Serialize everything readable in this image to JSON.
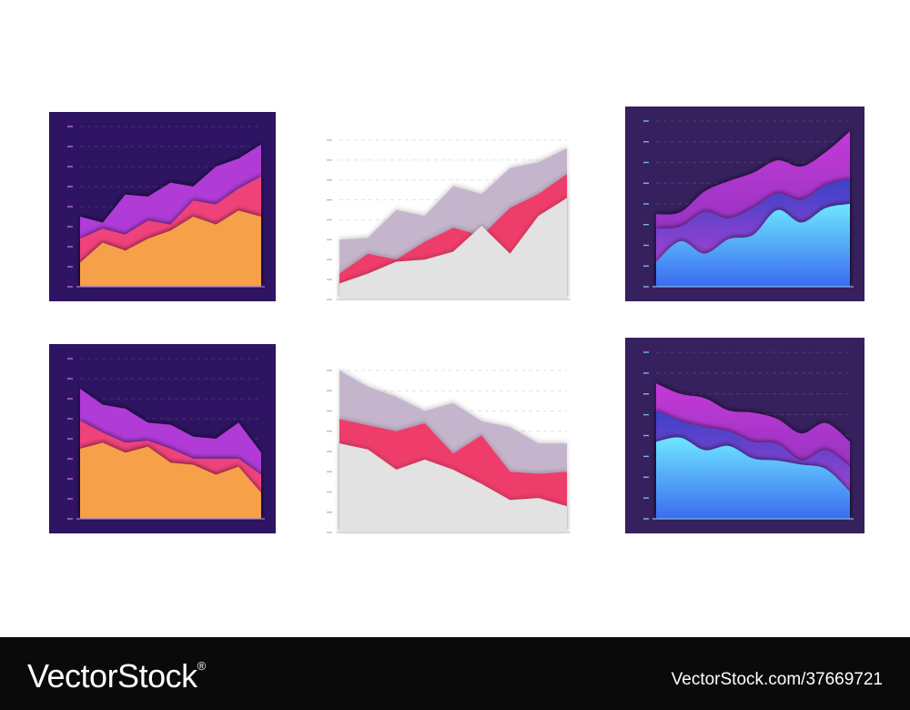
{
  "theme": {
    "dark_bg": "#2e1463",
    "dark_bg_alt": "#36205e",
    "light_bg": "#ffffff",
    "tick_dark": "#c36ad6",
    "tick_blue": "#7bb8e6",
    "tick_light": "#bdbdbd"
  },
  "chart_data": [
    {
      "type": "area",
      "style": "dark",
      "x": [
        0,
        1,
        2,
        3,
        4,
        5,
        6,
        7,
        8
      ],
      "ylim": [
        0,
        8
      ],
      "grid": true,
      "series": [
        {
          "color": "#f6a048",
          "values": [
            1.2,
            2.2,
            1.8,
            2.4,
            2.8,
            3.5,
            3.1,
            3.8,
            3.5
          ]
        },
        {
          "color": "#f0427a",
          "values": [
            2.4,
            2.9,
            2.6,
            3.3,
            3.1,
            4.3,
            4.1,
            4.9,
            5.5
          ]
        },
        {
          "color": "#b03bd6",
          "values": [
            3.5,
            3.2,
            4.6,
            4.5,
            5.2,
            5.0,
            6.0,
            6.4,
            7.1
          ]
        }
      ]
    },
    {
      "type": "area",
      "style": "light",
      "x": [
        0,
        1,
        2,
        3,
        4,
        5,
        6,
        7,
        8
      ],
      "ylim": [
        0,
        8
      ],
      "grid": true,
      "series": [
        {
          "color": "#e2e2e2",
          "values": [
            0.8,
            1.3,
            1.9,
            2.0,
            2.4,
            3.7,
            2.3,
            4.2,
            5.1
          ]
        },
        {
          "color": "#ee3d6b",
          "values": [
            1.3,
            2.3,
            2.0,
            2.9,
            3.6,
            3.2,
            4.6,
            5.3,
            6.3
          ]
        },
        {
          "color": "#c5b5cc",
          "values": [
            3.0,
            3.1,
            4.5,
            4.2,
            5.7,
            5.3,
            6.6,
            6.9,
            7.6
          ]
        }
      ]
    },
    {
      "type": "area",
      "style": "gradient",
      "x": [
        0,
        1,
        2,
        3,
        4,
        5,
        6,
        7,
        8
      ],
      "ylim": [
        0,
        8
      ],
      "grid": true,
      "series": [
        {
          "color": "#6ee6ff",
          "values": [
            1.2,
            2.2,
            1.6,
            2.3,
            2.5,
            3.7,
            3.1,
            3.8,
            4.0
          ]
        },
        {
          "color": "#4f46d8",
          "values": [
            2.8,
            2.9,
            3.6,
            3.3,
            3.8,
            4.5,
            4.2,
            4.9,
            5.2
          ]
        },
        {
          "color": "#c43ad6",
          "values": [
            3.5,
            3.6,
            4.6,
            5.1,
            5.5,
            6.1,
            5.8,
            6.5,
            7.5
          ]
        }
      ]
    },
    {
      "type": "area",
      "style": "dark",
      "x": [
        0,
        1,
        2,
        3,
        4,
        5,
        6,
        7,
        8
      ],
      "ylim": [
        0,
        8
      ],
      "grid": true,
      "series": [
        {
          "color": "#f6a048",
          "values": [
            3.5,
            3.8,
            3.3,
            3.6,
            2.8,
            2.7,
            2.2,
            2.6,
            1.3
          ]
        },
        {
          "color": "#f0427a",
          "values": [
            4.9,
            4.3,
            3.8,
            3.9,
            3.5,
            3.0,
            3.0,
            3.0,
            2.2
          ]
        },
        {
          "color": "#b03bd6",
          "values": [
            6.5,
            5.7,
            5.5,
            4.8,
            4.7,
            4.1,
            4.0,
            4.8,
            3.3
          ]
        }
      ]
    },
    {
      "type": "area",
      "style": "light",
      "x": [
        0,
        1,
        2,
        3,
        4,
        5,
        6,
        7,
        8
      ],
      "ylim": [
        0,
        8
      ],
      "grid": true,
      "series": [
        {
          "color": "#e2e2e2",
          "values": [
            4.4,
            4.1,
            3.1,
            3.6,
            3.1,
            2.4,
            1.6,
            1.7,
            1.3
          ]
        },
        {
          "color": "#ee3d6b",
          "values": [
            5.6,
            5.3,
            5.0,
            5.4,
            3.9,
            4.8,
            3.0,
            2.9,
            3.0
          ]
        },
        {
          "color": "#c5b5cc",
          "values": [
            8.0,
            7.2,
            6.7,
            6.0,
            6.4,
            5.5,
            5.2,
            4.4,
            4.4
          ]
        }
      ]
    },
    {
      "type": "area",
      "style": "gradient",
      "x": [
        0,
        1,
        2,
        3,
        4,
        5,
        6,
        7,
        8
      ],
      "ylim": [
        0,
        8
      ],
      "grid": true,
      "series": [
        {
          "color": "#6ee6ff",
          "values": [
            3.7,
            3.9,
            3.3,
            3.5,
            2.9,
            2.8,
            2.6,
            2.4,
            1.3
          ]
        },
        {
          "color": "#4f46d8",
          "values": [
            5.2,
            4.7,
            4.4,
            4.2,
            3.7,
            3.6,
            2.8,
            3.3,
            2.5
          ]
        },
        {
          "color": "#c43ad6",
          "values": [
            6.5,
            6.0,
            5.8,
            5.2,
            5.1,
            4.8,
            4.1,
            4.6,
            3.7
          ]
        }
      ]
    }
  ],
  "footer": {
    "brand": "VectorStock",
    "brand_mark": "®",
    "url": "VectorStock.com/37669721"
  }
}
